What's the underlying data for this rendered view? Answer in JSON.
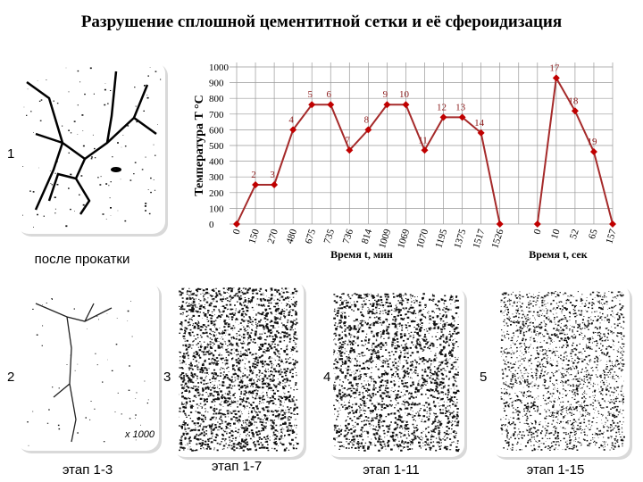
{
  "title": "Разрушение сплошной цементитной сетки и её сфероидизация",
  "panels": [
    {
      "number": "1",
      "caption": "после прокатки"
    },
    {
      "number": "2",
      "caption": "этап 1-3",
      "magnification": "x 1000"
    },
    {
      "number": "3",
      "caption": "этап 1-7"
    },
    {
      "number": "4",
      "caption": "этап 1-11"
    },
    {
      "number": "5",
      "caption": "этап 1-15"
    }
  ],
  "chart_data": {
    "type": "line",
    "ylabel": "Температура T °C",
    "xlabels": [
      "Время t, мин",
      "Время t, сек"
    ],
    "categories": [
      "0",
      "150",
      "270",
      "480",
      "675",
      "735",
      "736",
      "814",
      "1009",
      "1069",
      "1070",
      "1195",
      "1375",
      "1517",
      "1526",
      null,
      "0",
      "10",
      "52",
      "65",
      "157"
    ],
    "series": [
      {
        "color": "#a52a2a",
        "values": [
          0,
          250,
          250,
          600,
          760,
          760,
          470,
          600,
          760,
          760,
          470,
          680,
          680,
          580,
          0,
          null,
          0,
          930,
          720,
          460,
          0
        ]
      }
    ],
    "point_labels": [
      null,
      "2",
      "3",
      "4",
      "5",
      "6",
      "7",
      "8",
      "9",
      "10",
      "11",
      "12",
      "13",
      "14",
      null,
      null,
      null,
      "17",
      "18",
      "19",
      null
    ],
    "ylim": [
      0,
      1000
    ],
    "yticks": [
      0,
      100,
      200,
      300,
      400,
      500,
      600,
      700,
      800,
      900,
      1000
    ],
    "grid": true
  }
}
